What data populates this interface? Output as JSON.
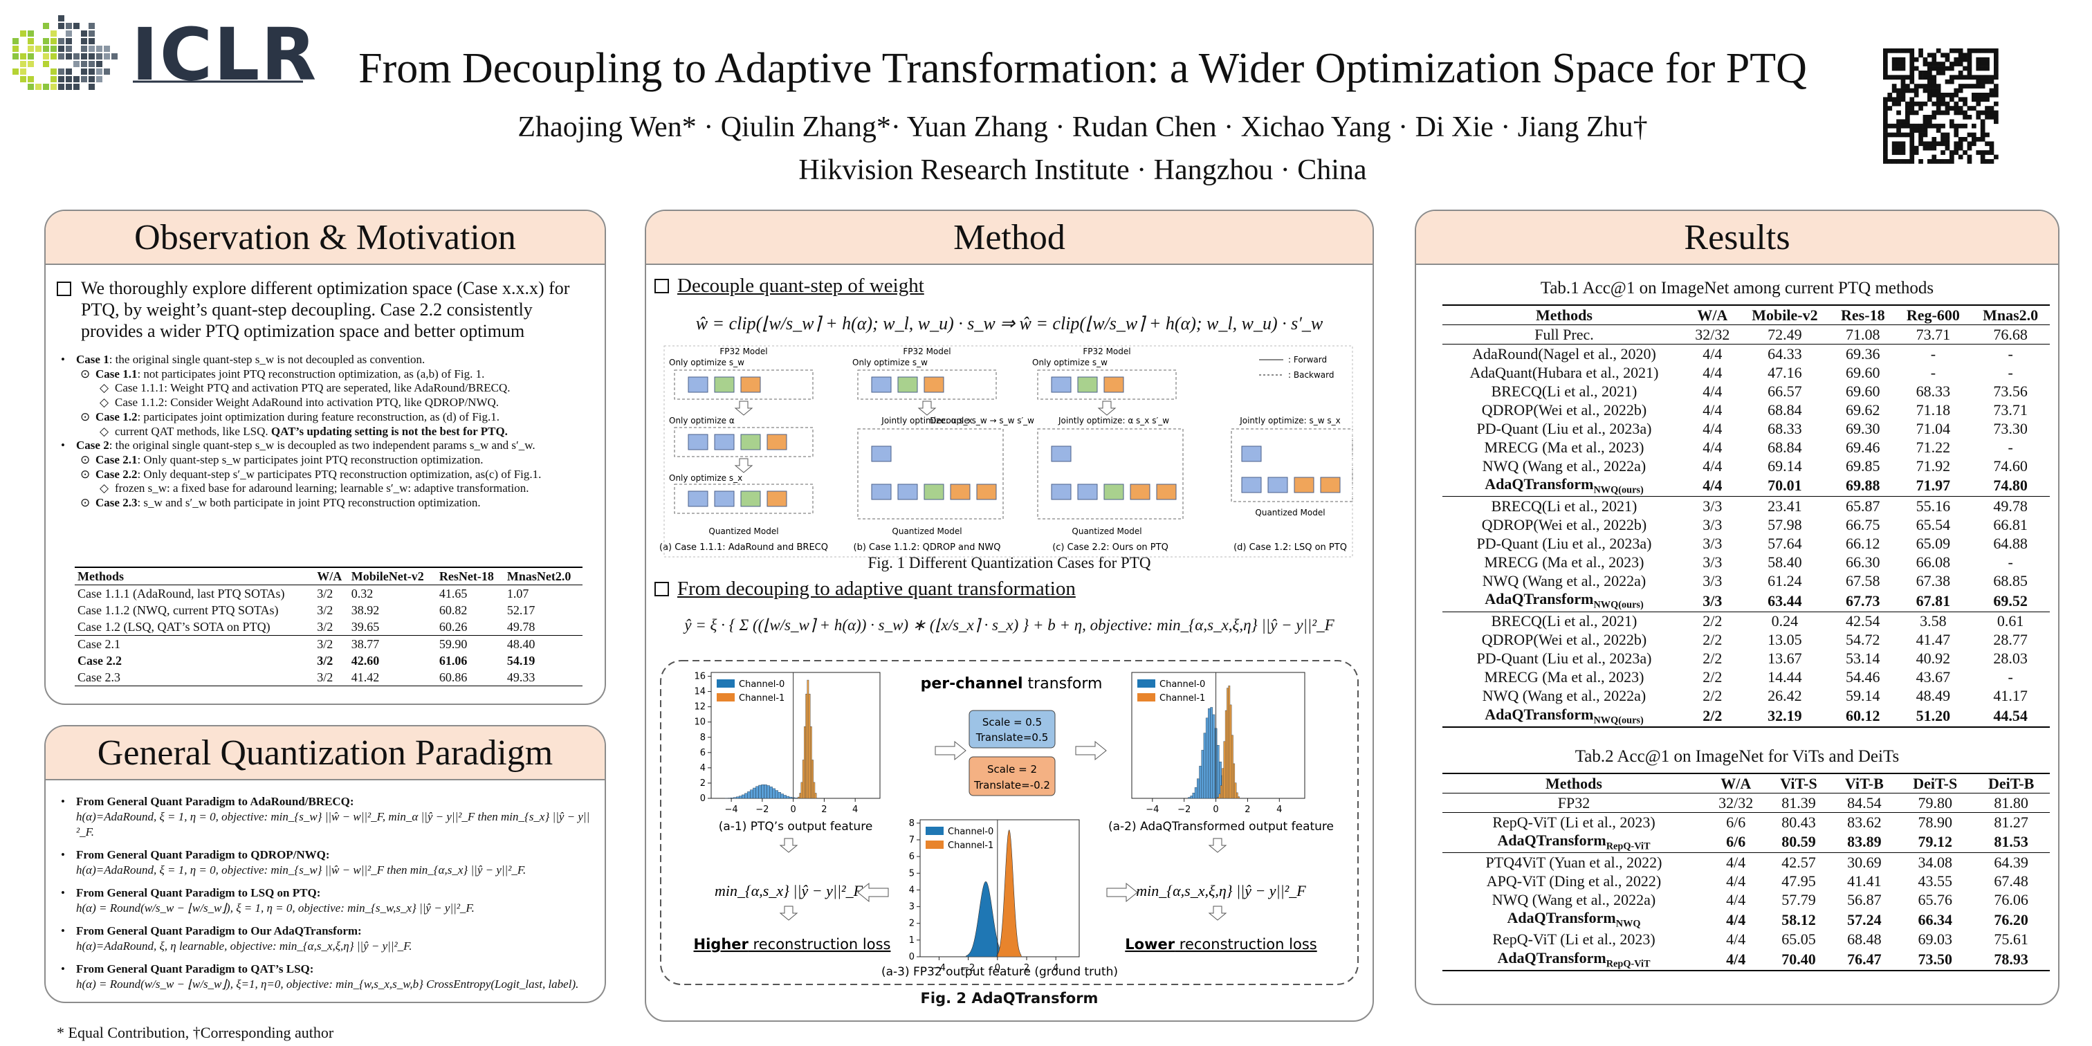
{
  "header": {
    "logo": "ICLR",
    "title": "From Decoupling to Adaptive Transformation: a Wider Optimization Space for PTQ",
    "authors": "Zhaojing Wen* · Qiulin Zhang*· Yuan Zhang · Rudan Chen · Xichao Yang · Di Xie · Jiang Zhu†",
    "affiliation": "Hikvision Research Institute · Hangzhou · China"
  },
  "observation": {
    "title": "Observation & Motivation",
    "intro": "We thoroughly explore different optimization space (Case x.x.x) for PTQ, by weight’s quant-step decoupling.  Case 2.2 consistently provides a wider PTQ optimization space and better optimum",
    "bullets": [
      {
        "level": 0,
        "parts": [
          {
            "text": "Case 1",
            "bold": true
          },
          {
            "text": ": the original single quant-step s_w is not decoupled as convention."
          }
        ]
      },
      {
        "level": 1,
        "parts": [
          {
            "text": "Case 1.1",
            "bold": true
          },
          {
            "text": ": not participates joint PTQ reconstruction optimization, as (a,b) of Fig. 1."
          }
        ]
      },
      {
        "level": 2,
        "parts": [
          {
            "text": "Case 1.1.1: Weight PTQ and activation PTQ are seperated, like AdaRound/BRECQ."
          }
        ]
      },
      {
        "level": 2,
        "parts": [
          {
            "text": "Case 1.1.2: Consider Weight AdaRound into activation PTQ, like QDROP/NWQ."
          }
        ]
      },
      {
        "level": 1,
        "parts": [
          {
            "text": "Case 1.2",
            "bold": true
          },
          {
            "text": ": participates joint optimization during feature reconstruction, as (d) of Fig.1."
          }
        ]
      },
      {
        "level": 2,
        "parts": [
          {
            "text": "current QAT methods, like LSQ. "
          },
          {
            "text": "QAT’s updating setting is not the best for PTQ.",
            "bold": true
          }
        ]
      },
      {
        "level": 0,
        "parts": [
          {
            "text": "Case 2",
            "bold": true
          },
          {
            "text": ": the original single quant-step s_w is decoupled as two independent params s_w and s′_w."
          }
        ]
      },
      {
        "level": 1,
        "parts": [
          {
            "text": "Case 2.1",
            "bold": true
          },
          {
            "text": ": Only quant-step s_w participates joint PTQ reconstruction optimization."
          }
        ]
      },
      {
        "level": 1,
        "parts": [
          {
            "text": "Case 2.2",
            "bold": true
          },
          {
            "text": ": Only dequant-step s′_w participates PTQ reconstruction optimization, as(c) of Fig.1."
          }
        ]
      },
      {
        "level": 2,
        "parts": [
          {
            "text": "frozen s_w: a fixed base for adaround learning;   learnable s′_w: adaptive transformation."
          }
        ]
      },
      {
        "level": 1,
        "parts": [
          {
            "text": "Case 2.3",
            "bold": true
          },
          {
            "text": ": s_w and s′_w both participate in joint PTQ reconstruction optimization."
          }
        ]
      }
    ],
    "table": {
      "columns": [
        "Methods",
        "W/A",
        "MobileNet-v2",
        "ResNet-18",
        "MnasNet2.0"
      ],
      "groups": [
        [
          {
            "cells": [
              "Case 1.1.1 (AdaRound, last PTQ SOTAs)",
              "3/2",
              "0.32",
              "41.65",
              "1.07"
            ]
          },
          {
            "cells": [
              "Case 1.1.2 (NWQ, current PTQ SOTAs)",
              "3/2",
              "38.92",
              "60.82",
              "52.17"
            ]
          },
          {
            "cells": [
              "Case 1.2 (LSQ, QAT’s SOTA on PTQ)",
              "3/2",
              "39.65",
              "60.26",
              "49.78"
            ]
          }
        ],
        [
          {
            "cells": [
              "Case 2.1",
              "3/2",
              "38.77",
              "59.90",
              "48.40"
            ]
          },
          {
            "cells": [
              "Case 2.2",
              "3/2",
              "42.60",
              "61.06",
              "54.19"
            ],
            "bold": true
          },
          {
            "cells": [
              "Case 2.3",
              "3/2",
              "41.42",
              "60.86",
              "49.33"
            ]
          }
        ]
      ]
    }
  },
  "paradigm": {
    "title": "General Quantization Paradigm",
    "items": [
      {
        "head": "From General Quant Paradigm to AdaRound/BRECQ:",
        "body": "h(α)=AdaRound, ξ = 1, η = 0, objective: min_{s_w} ||ŵ − w||²_F, min_α ||ŷ − y||²_F then min_{s_x} ||ŷ − y||²_F."
      },
      {
        "head": "From General Quant Paradigm to QDROP/NWQ:",
        "body": "h(α)=AdaRound, ξ = 1, η = 0, objective: min_{s_w} ||ŵ − w||²_F then min_{α,s_x} ||ŷ − y||²_F."
      },
      {
        "head": "From General Quant Paradigm to LSQ on PTQ:",
        "body": "h(α) = Round(w/s_w − ⌊w/s_w⌋), ξ = 1, η = 0, objective: min_{s_w,s_x} ||ŷ − y||²_F."
      },
      {
        "head": "From General Quant Paradigm to Our AdaQTransform:",
        "body": "h(α)=AdaRound, ξ, η learnable, objective: min_{α,s_x,ξ,η} ||ŷ − y||²_F."
      },
      {
        "head": "From General Quant Paradigm to QAT’s LSQ:",
        "body": "h(α) = Round(w/s_w − ⌊w/s_w⌋), ξ=1, η=0, objective: min_{w,s_x,s_w,b} CrossEntropy(Logit_last, label)."
      }
    ]
  },
  "method": {
    "title": "Method",
    "section1": "Decouple quant-step  of weight",
    "formula1": "ŵ = clip(⌊w/s_w⌉ + h(α); w_l, w_u) · s_w    ⇒    ŵ = clip(⌊w/s_w⌉ + h(α); w_l, w_u) · s′_w",
    "fig1": {
      "fp32": "FP32 Model",
      "quantized": "Quantized Model",
      "labels": [
        "Only optimize s_w",
        "Only optimize α",
        "Only optimize s_x",
        "Jointly optimize: α s_x",
        "Decouple s_w → s_w s′_w",
        "Jointly optimize: α s_x s′_w",
        "Jointly optimize: s_w s_x"
      ],
      "legend": [
        ": Forward",
        ": Backward"
      ],
      "subcaptions": [
        "(a)  Case 1.1.1: AdaRound and BRECQ",
        "(b) Case 1.1.2: QDROP and NWQ",
        "(c) Case 2.2: Ours on PTQ",
        "(d) Case 1.2: LSQ on PTQ"
      ],
      "caption": "Fig. 1 Different Quantization Cases for PTQ"
    },
    "section2": "From decouping to adaptive quant transformation",
    "formula2": "ŷ = ξ · { Σ ((⌊w/s_w⌉ + h(α)) · s_w) ∗ (⌊x/s_x⌉ · s_x) } + b + η,   objective: min_{α,s_x,ξ,η} ||ŷ − y||²_F",
    "fig2": {
      "transform": [
        {
          "text": "per-channel",
          "bold": true
        },
        {
          "text": " transform"
        }
      ],
      "box1": [
        "Scale = 0.5",
        "Translate=0.5"
      ],
      "box2": [
        "Scale = 2",
        "Translate=-0.2"
      ],
      "legend": [
        "Channel-0",
        "Channel-1"
      ],
      "captions": [
        "(a-1) PTQ’s output feature",
        "(a-2) AdaQTransformed output feature",
        "(a-3)  FP32 output feature (ground truth)"
      ],
      "objective_left": "min_{α,s_x} ||ŷ − y||²_F",
      "objective_right": "min_{α,s_x,ξ,η} ||ŷ − y||²_F",
      "loss_left": [
        {
          "text": "Higher",
          "bold": true,
          "underline": true
        },
        {
          "text": " reconstruction loss",
          "underline": true
        }
      ],
      "loss_right": [
        {
          "text": "Lower",
          "bold": true,
          "underline": true
        },
        {
          "text": " reconstruction loss",
          "underline": true
        }
      ],
      "x_ticks": [
        {
          "value": -4,
          "label": "−4"
        },
        {
          "value": -2,
          "label": "−2"
        },
        0,
        2,
        4
      ],
      "y_ticks_a1": [
        0,
        2,
        4,
        6,
        8,
        10,
        12,
        14,
        16
      ],
      "y_ticks_a3": [
        0,
        1,
        2,
        3,
        4,
        5,
        6,
        7,
        8
      ],
      "caption": "Fig. 2 AdaQTransform"
    }
  },
  "results": {
    "title": "Results",
    "table1": {
      "caption": "Tab.1  Acc@1 on ImageNet among current PTQ methods",
      "columns": [
        "Methods",
        "W/A",
        "Mobile-v2",
        "Res-18",
        "Reg-600",
        "Mnas2.0"
      ],
      "groups": [
        [
          {
            "cells": [
              "Full Prec.",
              "32/32",
              "72.49",
              "71.08",
              "73.71",
              "76.68"
            ]
          }
        ],
        [
          {
            "cells": [
              "AdaRound(Nagel et al., 2020)",
              "4/4",
              "64.33",
              "69.36",
              "-",
              "-"
            ]
          },
          {
            "cells": [
              "AdaQuant(Hubara et al., 2021)",
              "4/4",
              "47.16",
              "69.60",
              "-",
              "-"
            ]
          },
          {
            "cells": [
              "BRECQ(Li et al., 2021)",
              "4/4",
              "66.57",
              "69.60",
              "68.33",
              "73.56"
            ]
          },
          {
            "cells": [
              "QDROP(Wei et al., 2022b)",
              "4/4",
              "68.84",
              "69.62",
              "71.18",
              "73.71"
            ]
          },
          {
            "cells": [
              "PD-Quant (Liu et al., 2023a)",
              "4/4",
              "68.33",
              "69.30",
              "71.04",
              "73.30"
            ]
          },
          {
            "cells": [
              "MRECG (Ma et al., 2023)",
              "4/4",
              "68.84",
              "69.46",
              "71.22",
              "-"
            ]
          },
          {
            "cells": [
              "NWQ (Wang et al., 2022a)",
              "4/4",
              "69.14",
              "69.85",
              "71.92",
              "74.60"
            ]
          },
          {
            "cells": [
              {
                "text": "AdaQTransform",
                "sub": "NWQ(ours)"
              },
              "4/4",
              "70.01",
              "69.88",
              "71.97",
              "74.80"
            ],
            "bold": true
          }
        ],
        [
          {
            "cells": [
              "BRECQ(Li et al., 2021)",
              "3/3",
              "23.41",
              "65.87",
              "55.16",
              "49.78"
            ]
          },
          {
            "cells": [
              "QDROP(Wei et al., 2022b)",
              "3/3",
              "57.98",
              "66.75",
              "65.54",
              "66.81"
            ]
          },
          {
            "cells": [
              "PD-Quant (Liu et al., 2023a)",
              "3/3",
              "57.64",
              "66.12",
              "65.09",
              "64.88"
            ]
          },
          {
            "cells": [
              "MRECG (Ma et al., 2023)",
              "3/3",
              "58.40",
              "66.30",
              "66.08",
              "-"
            ]
          },
          {
            "cells": [
              "NWQ (Wang et al., 2022a)",
              "3/3",
              "61.24",
              "67.58",
              "67.38",
              "68.85"
            ]
          },
          {
            "cells": [
              {
                "text": "AdaQTransform",
                "sub": "NWQ(ours)"
              },
              "3/3",
              "63.44",
              "67.73",
              "67.81",
              "69.52"
            ],
            "bold": true
          }
        ],
        [
          {
            "cells": [
              "BRECQ(Li et al., 2021)",
              "2/2",
              "0.24",
              "42.54",
              "3.58",
              "0.61"
            ]
          },
          {
            "cells": [
              "QDROP(Wei et al., 2022b)",
              "2/2",
              "13.05",
              "54.72",
              "41.47",
              "28.77"
            ]
          },
          {
            "cells": [
              "PD-Quant (Liu et al., 2023a)",
              "2/2",
              "13.67",
              "53.14",
              "40.92",
              "28.03"
            ]
          },
          {
            "cells": [
              "MRECG (Ma et al., 2023)",
              "2/2",
              "14.44",
              "54.46",
              "43.67",
              "-"
            ]
          },
          {
            "cells": [
              "NWQ (Wang et al., 2022a)",
              "2/2",
              "26.42",
              "59.14",
              "48.49",
              "41.17"
            ]
          },
          {
            "cells": [
              {
                "text": "AdaQTransform",
                "sub": "NWQ(ours)"
              },
              "2/2",
              "32.19",
              "60.12",
              "51.20",
              "44.54"
            ],
            "bold": true
          }
        ]
      ]
    },
    "table2": {
      "caption": "Tab.2  Acc@1 on ImageNet for ViTs and DeiTs",
      "columns": [
        "Methods",
        "W/A",
        "ViT-S",
        "ViT-B",
        "DeiT-S",
        "DeiT-B"
      ],
      "groups": [
        [
          {
            "cells": [
              "FP32",
              "32/32",
              "81.39",
              "84.54",
              "79.80",
              "81.80"
            ]
          }
        ],
        [
          {
            "cells": [
              "RepQ-ViT (Li et al., 2023)",
              "6/6",
              "80.43",
              "83.62",
              "78.90",
              "81.27"
            ]
          },
          {
            "cells": [
              {
                "text": "AdaQTransform",
                "sub": "RepQ-ViT"
              },
              "6/6",
              "80.59",
              "83.89",
              "79.12",
              "81.53"
            ],
            "bold": true
          }
        ],
        [
          {
            "cells": [
              "PTQ4ViT (Yuan et al., 2022)",
              "4/4",
              "42.57",
              "30.69",
              "34.08",
              "64.39"
            ]
          },
          {
            "cells": [
              "APQ-ViT (Ding et al., 2022)",
              "4/4",
              "47.95",
              "41.41",
              "43.55",
              "67.48"
            ]
          },
          {
            "cells": [
              "NWQ (Wang et al., 2022a)",
              "4/4",
              "57.79",
              "56.87",
              "65.76",
              "76.06"
            ]
          },
          {
            "cells": [
              {
                "text": "AdaQTransform",
                "sub": "NWQ"
              },
              "4/4",
              "58.12",
              "57.24",
              "66.34",
              "76.20"
            ],
            "bold": true
          },
          {
            "cells": [
              "RepQ-ViT (Li et al., 2023)",
              "4/4",
              "65.05",
              "68.48",
              "69.03",
              "75.61"
            ]
          },
          {
            "cells": [
              {
                "text": "AdaQTransform",
                "sub": "RepQ-ViT"
              },
              "4/4",
              "70.40",
              "76.47",
              "73.50",
              "78.93"
            ],
            "bold": true
          }
        ]
      ]
    }
  },
  "footnote": "* Equal Contribution, †Corresponding author"
}
